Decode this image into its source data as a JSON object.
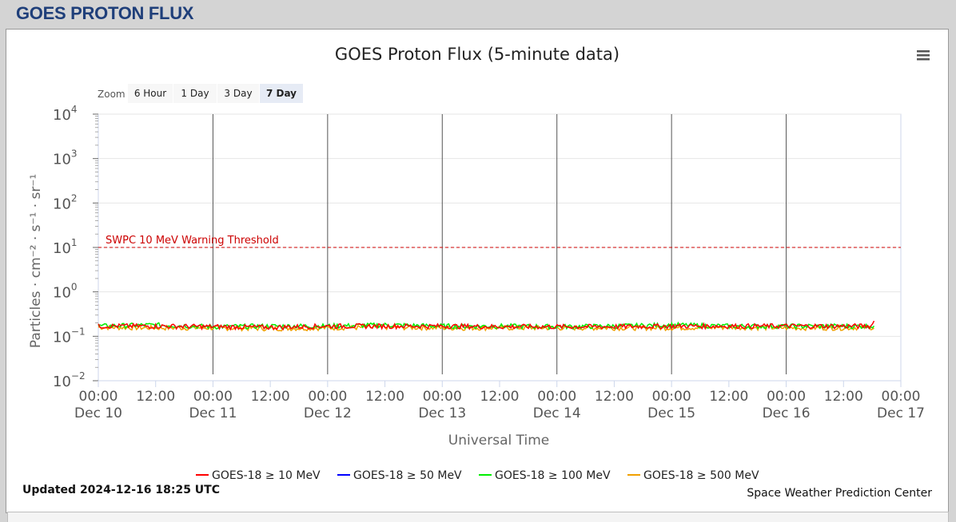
{
  "page": {
    "title": "GOES PROTON FLUX"
  },
  "chart_data": {
    "type": "line",
    "title": "GOES Proton Flux (5-minute data)",
    "xlabel": "Universal Time",
    "ylabel": "Particles · cm⁻² · s⁻¹ · sr⁻¹",
    "yscale": "log",
    "ylim_exp": [
      -2,
      4
    ],
    "y_tick_exponents": [
      4,
      3,
      2,
      1,
      0,
      -1,
      -2
    ],
    "xlim_hours": [
      0,
      168
    ],
    "x_ticks": [
      {
        "time": "00:00",
        "date": "Dec 10"
      },
      {
        "time": "12:00",
        "date": ""
      },
      {
        "time": "00:00",
        "date": "Dec 11"
      },
      {
        "time": "12:00",
        "date": ""
      },
      {
        "time": "00:00",
        "date": "Dec 12"
      },
      {
        "time": "12:00",
        "date": ""
      },
      {
        "time": "00:00",
        "date": "Dec 13"
      },
      {
        "time": "12:00",
        "date": ""
      },
      {
        "time": "00:00",
        "date": "Dec 14"
      },
      {
        "time": "12:00",
        "date": ""
      },
      {
        "time": "00:00",
        "date": "Dec 15"
      },
      {
        "time": "12:00",
        "date": ""
      },
      {
        "time": "00:00",
        "date": "Dec 16"
      },
      {
        "time": "12:00",
        "date": ""
      },
      {
        "time": "00:00",
        "date": "Dec 17"
      }
    ],
    "day_markers_hours": [
      24,
      48,
      72,
      96,
      120,
      144
    ],
    "threshold": {
      "label": "SWPC 10 MeV Warning Threshold",
      "value": 10,
      "color": "#cc0000"
    },
    "series": [
      {
        "name": "GOES-18 ≥ 10 MeV",
        "color": "#ff0000",
        "x_hours": [
          0,
          12,
          24,
          36,
          48,
          60,
          72,
          84,
          96,
          108,
          120,
          132,
          144,
          156,
          162,
          162.4
        ],
        "values": [
          0.17,
          0.17,
          0.165,
          0.16,
          0.17,
          0.17,
          0.17,
          0.165,
          0.165,
          0.165,
          0.17,
          0.17,
          0.17,
          0.17,
          0.17,
          0.25
        ]
      },
      {
        "name": "GOES-18 ≥ 50 MeV",
        "color": "#0000ff",
        "x_hours": [],
        "values": []
      },
      {
        "name": "GOES-18 ≥ 100 MeV",
        "color": "#00ee00",
        "x_hours": [
          0,
          12,
          24,
          36,
          48,
          60,
          72,
          84,
          96,
          108,
          120,
          132,
          144,
          156,
          162.4
        ],
        "values": [
          0.17,
          0.18,
          0.165,
          0.17,
          0.17,
          0.18,
          0.17,
          0.17,
          0.165,
          0.17,
          0.18,
          0.17,
          0.17,
          0.17,
          0.17
        ]
      },
      {
        "name": "GOES-18 ≥ 500 MeV",
        "color": "#f0a000",
        "x_hours": [
          0,
          12,
          24,
          36,
          48,
          60,
          72,
          84,
          96,
          108,
          120,
          132,
          144,
          156,
          162.4
        ],
        "values": [
          0.16,
          0.155,
          0.155,
          0.15,
          0.155,
          0.16,
          0.155,
          0.155,
          0.155,
          0.155,
          0.155,
          0.16,
          0.155,
          0.155,
          0.16
        ]
      }
    ],
    "zoom": {
      "label": "Zoom",
      "buttons": [
        "6 Hour",
        "1 Day",
        "3 Day",
        "7 Day"
      ],
      "active": "7 Day"
    },
    "updated": "Updated 2024-12-16 18:25 UTC",
    "credit": "Space Weather Prediction Center",
    "menu_icon": "hamburger-menu-icon"
  }
}
